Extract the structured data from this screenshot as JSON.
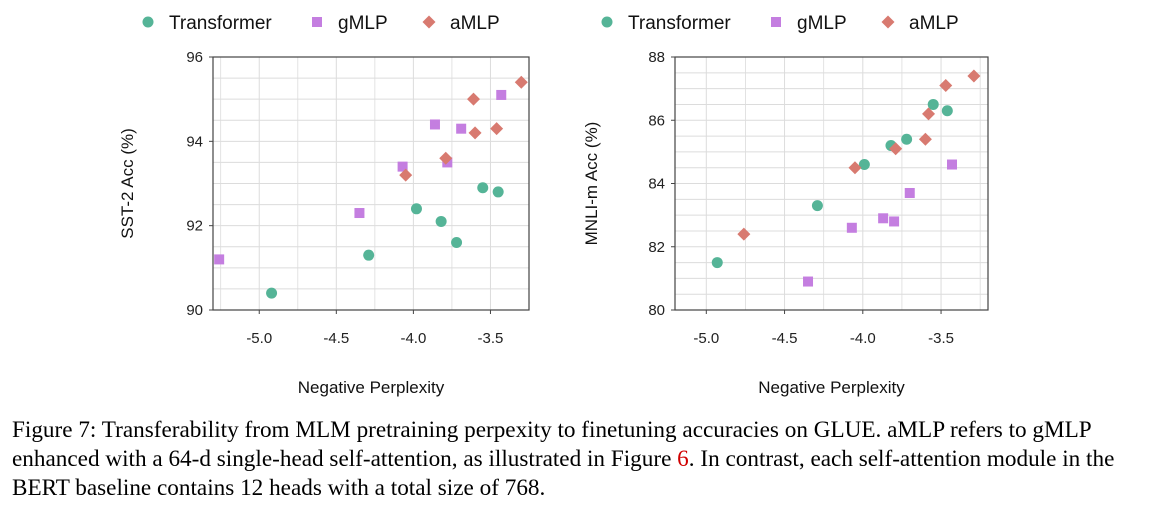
{
  "colors": {
    "Transformer": "#55b497",
    "gMLP": "#c47ee0",
    "aMLP": "#d87a70",
    "grid": "#dcdcdc",
    "frame": "#444444"
  },
  "chart_data": [
    {
      "type": "scatter",
      "xlabel": "Negative Perplexity",
      "ylabel": "SST-2 Acc (%)",
      "xlim": [
        -5.3,
        -3.25
      ],
      "ylim": [
        90,
        96
      ],
      "xticks": [
        -5.0,
        -4.5,
        -4.0,
        -3.5
      ],
      "xtick_labels": [
        "-5.0",
        "-4.5",
        "-4.0",
        "-3.5"
      ],
      "yticks": [
        90,
        92,
        94,
        96
      ],
      "ytick_labels": [
        "90",
        "92",
        "94",
        "96"
      ],
      "grid": true,
      "legend": "top",
      "series": [
        {
          "name": "Transformer",
          "marker": "circle",
          "x": [
            -4.92,
            -4.29,
            -3.98,
            -3.82,
            -3.72,
            -3.55,
            -3.45
          ],
          "y": [
            90.4,
            91.3,
            92.4,
            92.1,
            91.6,
            92.9,
            92.8
          ]
        },
        {
          "name": "gMLP",
          "marker": "square",
          "x": [
            -5.26,
            -4.35,
            -4.07,
            -3.86,
            -3.78,
            -3.69,
            -3.43
          ],
          "y": [
            91.2,
            92.3,
            93.4,
            94.4,
            93.5,
            94.3,
            95.1
          ]
        },
        {
          "name": "aMLP",
          "marker": "diamond",
          "x": [
            -4.05,
            -3.79,
            -3.61,
            -3.6,
            -3.46,
            -3.3
          ],
          "y": [
            93.2,
            93.6,
            95.0,
            94.2,
            94.3,
            95.4
          ]
        }
      ]
    },
    {
      "type": "scatter",
      "xlabel": "Negative Perplexity",
      "ylabel": "MNLI-m Acc (%)",
      "xlim": [
        -5.2,
        -3.2
      ],
      "ylim": [
        80,
        88
      ],
      "xticks": [
        -5.0,
        -4.5,
        -4.0,
        -3.5
      ],
      "xtick_labels": [
        "-5.0",
        "-4.5",
        "-4.0",
        "-3.5"
      ],
      "yticks": [
        80,
        82,
        84,
        86,
        88
      ],
      "ytick_labels": [
        "80",
        "82",
        "84",
        "86",
        "88"
      ],
      "grid": true,
      "legend": "top",
      "series": [
        {
          "name": "Transformer",
          "marker": "circle",
          "x": [
            -4.93,
            -4.29,
            -3.99,
            -3.82,
            -3.72,
            -3.55,
            -3.46
          ],
          "y": [
            81.5,
            83.3,
            84.6,
            85.2,
            85.4,
            86.5,
            86.3
          ]
        },
        {
          "name": "gMLP",
          "marker": "square",
          "x": [
            -4.35,
            -4.07,
            -3.87,
            -3.8,
            -3.7,
            -3.43
          ],
          "y": [
            80.9,
            82.6,
            82.9,
            82.8,
            83.7,
            84.6
          ]
        },
        {
          "name": "aMLP",
          "marker": "diamond",
          "x": [
            -4.76,
            -4.05,
            -3.79,
            -3.6,
            -3.58,
            -3.47,
            -3.29
          ],
          "y": [
            82.4,
            84.5,
            85.1,
            85.4,
            86.2,
            87.1,
            87.4
          ]
        }
      ]
    }
  ],
  "caption": {
    "text_before": "Figure 7: Transferability from MLM pretraining perpexity to finetuning accuracies on GLUE. aMLP refers to gMLP enhanced with a 64-d single-head self-attention, as illustrated in Figure ",
    "ref": "6",
    "text_after": ". In contrast, each self-attention module in the BERT baseline contains 12 heads with a total size of 768."
  }
}
